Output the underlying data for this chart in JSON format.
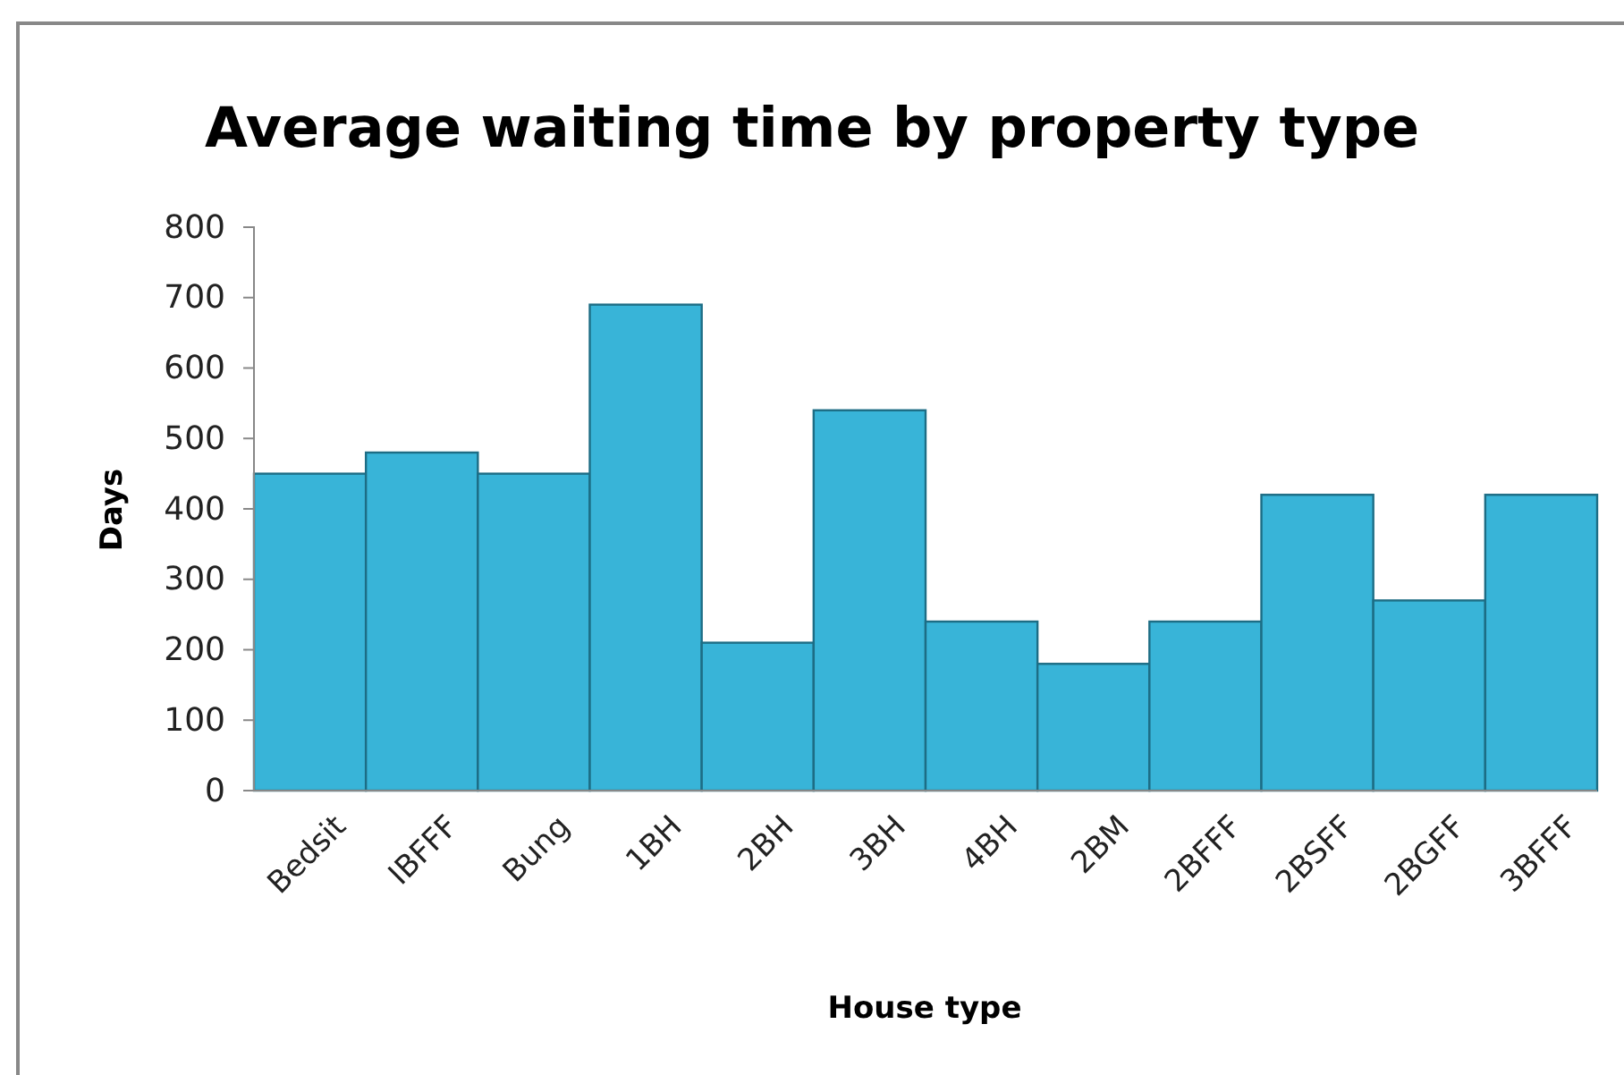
{
  "chart_data": {
    "type": "bar",
    "title": "Average waiting time by property type",
    "xlabel": "House type",
    "ylabel": "Days",
    "categories": [
      "Bedsit",
      "IBFFF",
      "Bung",
      "1BH",
      "2BH",
      "3BH",
      "4BH",
      "2BM",
      "2BFFF",
      "2BSFF",
      "2BGFF",
      "3BFFF"
    ],
    "values": [
      450,
      480,
      450,
      690,
      210,
      540,
      240,
      180,
      240,
      420,
      270,
      420
    ],
    "color": "#38b4d8",
    "ylim": [
      0,
      800
    ],
    "yticks": [
      0,
      100,
      200,
      300,
      400,
      500,
      600,
      700,
      800
    ],
    "grid": false
  }
}
